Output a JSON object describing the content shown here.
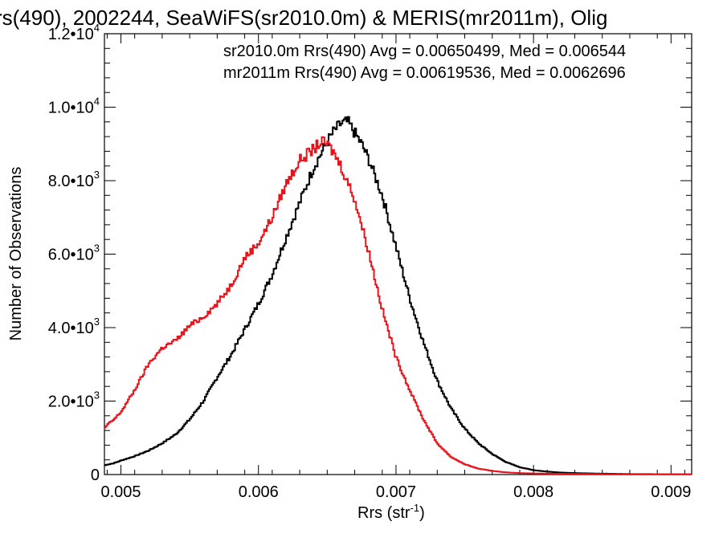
{
  "chart_data": {
    "type": "line",
    "title": "rs(490), 2002244, SeaWiFS(sr2010.0m) & MERIS(mr2011m), Olig",
    "xlabel": "Rrs (str",
    "xlabel_sup": "-1",
    "xlabel_close": ")",
    "ylabel": "Number of Observations",
    "xlim": [
      0.00488,
      0.00915
    ],
    "ylim": [
      0,
      12000
    ],
    "grid": false,
    "x_ticks": [
      {
        "value": 0.005,
        "label": "0.005"
      },
      {
        "value": 0.006,
        "label": "0.006"
      },
      {
        "value": 0.007,
        "label": "0.007"
      },
      {
        "value": 0.008,
        "label": "0.008"
      },
      {
        "value": 0.009,
        "label": "0.009"
      }
    ],
    "y_ticks": [
      {
        "value": 0,
        "mant": "0",
        "exp": ""
      },
      {
        "value": 2000,
        "mant": "2.0•10",
        "exp": "3"
      },
      {
        "value": 4000,
        "mant": "4.0•10",
        "exp": "3"
      },
      {
        "value": 6000,
        "mant": "6.0•10",
        "exp": "3"
      },
      {
        "value": 8000,
        "mant": "8.0•10",
        "exp": "3"
      },
      {
        "value": 10000,
        "mant": "1.0•10",
        "exp": "4"
      },
      {
        "value": 12000,
        "mant": "1.2•10",
        "exp": "4"
      }
    ],
    "legend": [
      {
        "text": "sr2010.0m Rrs(490) Avg = 0.00650499, Med = 0.006544",
        "color": "#000000"
      },
      {
        "text": "mr2011m Rrs(490) Avg = 0.00619536, Med = 0.0062696",
        "color": "#e8141c"
      }
    ],
    "series": [
      {
        "color": "#000000",
        "x": [
          0.00488,
          0.0049,
          0.00495,
          0.005,
          0.0051,
          0.0052,
          0.0053,
          0.0054,
          0.0055,
          0.0056,
          0.0057,
          0.0058,
          0.0059,
          0.006,
          0.0061,
          0.0062,
          0.0063,
          0.0064,
          0.0065,
          0.00655,
          0.0066,
          0.00665,
          0.0067,
          0.00675,
          0.0068,
          0.0069,
          0.007,
          0.0071,
          0.0072,
          0.0073,
          0.0074,
          0.0075,
          0.0076,
          0.0077,
          0.0078,
          0.0079,
          0.008,
          0.0081,
          0.0082,
          0.0083,
          0.0085,
          0.0087,
          0.009,
          0.00915
        ],
        "y": [
          250,
          270,
          310,
          380,
          500,
          650,
          850,
          1100,
          1500,
          2000,
          2650,
          3250,
          3950,
          4650,
          5450,
          6450,
          7400,
          8350,
          9050,
          9350,
          9550,
          9600,
          9300,
          9000,
          8600,
          7600,
          6200,
          4800,
          3600,
          2550,
          1800,
          1250,
          850,
          560,
          340,
          200,
          120,
          80,
          55,
          40,
          25,
          15,
          10,
          10
        ]
      },
      {
        "color": "#e8141c",
        "x": [
          0.00488,
          0.0049,
          0.00495,
          0.005,
          0.0051,
          0.0052,
          0.0053,
          0.0054,
          0.0055,
          0.0056,
          0.0057,
          0.0058,
          0.0059,
          0.006,
          0.0061,
          0.0062,
          0.0063,
          0.0064,
          0.00645,
          0.0065,
          0.00655,
          0.0066,
          0.0067,
          0.0068,
          0.0069,
          0.007,
          0.0071,
          0.0072,
          0.0073,
          0.0074,
          0.0075,
          0.0076,
          0.0077,
          0.0078,
          0.0079,
          0.008,
          0.0082,
          0.0085,
          0.009,
          0.00915
        ],
        "y": [
          1250,
          1350,
          1500,
          1700,
          2300,
          3000,
          3450,
          3650,
          4050,
          4300,
          4650,
          5150,
          5900,
          6300,
          7000,
          7900,
          8550,
          8850,
          9050,
          9000,
          8750,
          8400,
          7500,
          6100,
          4500,
          3200,
          2300,
          1500,
          850,
          480,
          280,
          160,
          100,
          60,
          40,
          30,
          20,
          12,
          10,
          10
        ]
      }
    ]
  }
}
